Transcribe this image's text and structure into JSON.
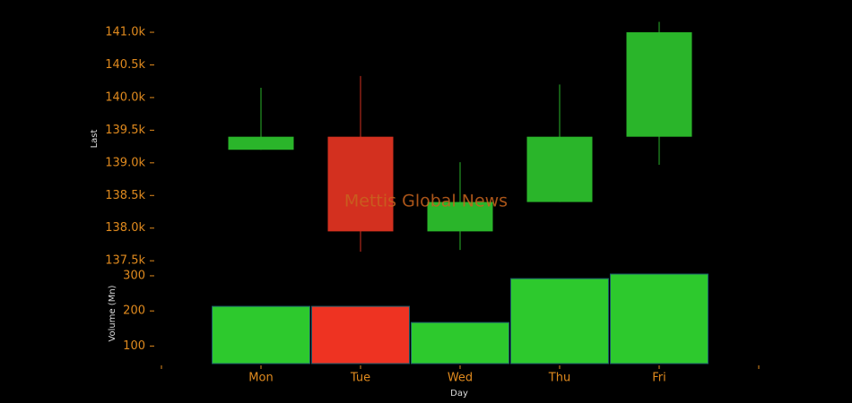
{
  "chart_data": [
    {
      "type": "candlestick",
      "ylabel": "Last",
      "open": [
        139200,
        139400,
        137950,
        138400,
        139400
      ],
      "high": [
        140150,
        140330,
        139010,
        140200,
        141160
      ],
      "low": [
        139200,
        137640,
        137665,
        138400,
        138970
      ],
      "close": [
        139400,
        137950,
        138400,
        139400,
        141000
      ],
      "up_color": "#2ab52a",
      "down_color": "#d3301f",
      "ylim": [
        137420,
        141220
      ],
      "yticks": [
        {
          "value": 137500,
          "label": "137.5k"
        },
        {
          "value": 138000,
          "label": "138.0k"
        },
        {
          "value": 138500,
          "label": "138.5k"
        },
        {
          "value": 139000,
          "label": "139.0k"
        },
        {
          "value": 139500,
          "label": "139.5k"
        },
        {
          "value": 140000,
          "label": "140.0k"
        },
        {
          "value": 140500,
          "label": "140.5k"
        },
        {
          "value": 141000,
          "label": "141.0k"
        }
      ],
      "annotation": "Mettis Global News"
    },
    {
      "type": "bar",
      "xlabel": "Day",
      "ylabel": "Volume (Mn)",
      "categories": [
        "Mon",
        "Tue",
        "Wed",
        "Thu",
        "Fri"
      ],
      "values": [
        213,
        213,
        167,
        292,
        305
      ],
      "colors": [
        "#2dc92d",
        "#ee3322",
        "#2dc92d",
        "#2dc92d",
        "#2dc92d"
      ],
      "ylim": [
        50,
        305
      ],
      "yticks": [
        100,
        200,
        300
      ]
    }
  ]
}
